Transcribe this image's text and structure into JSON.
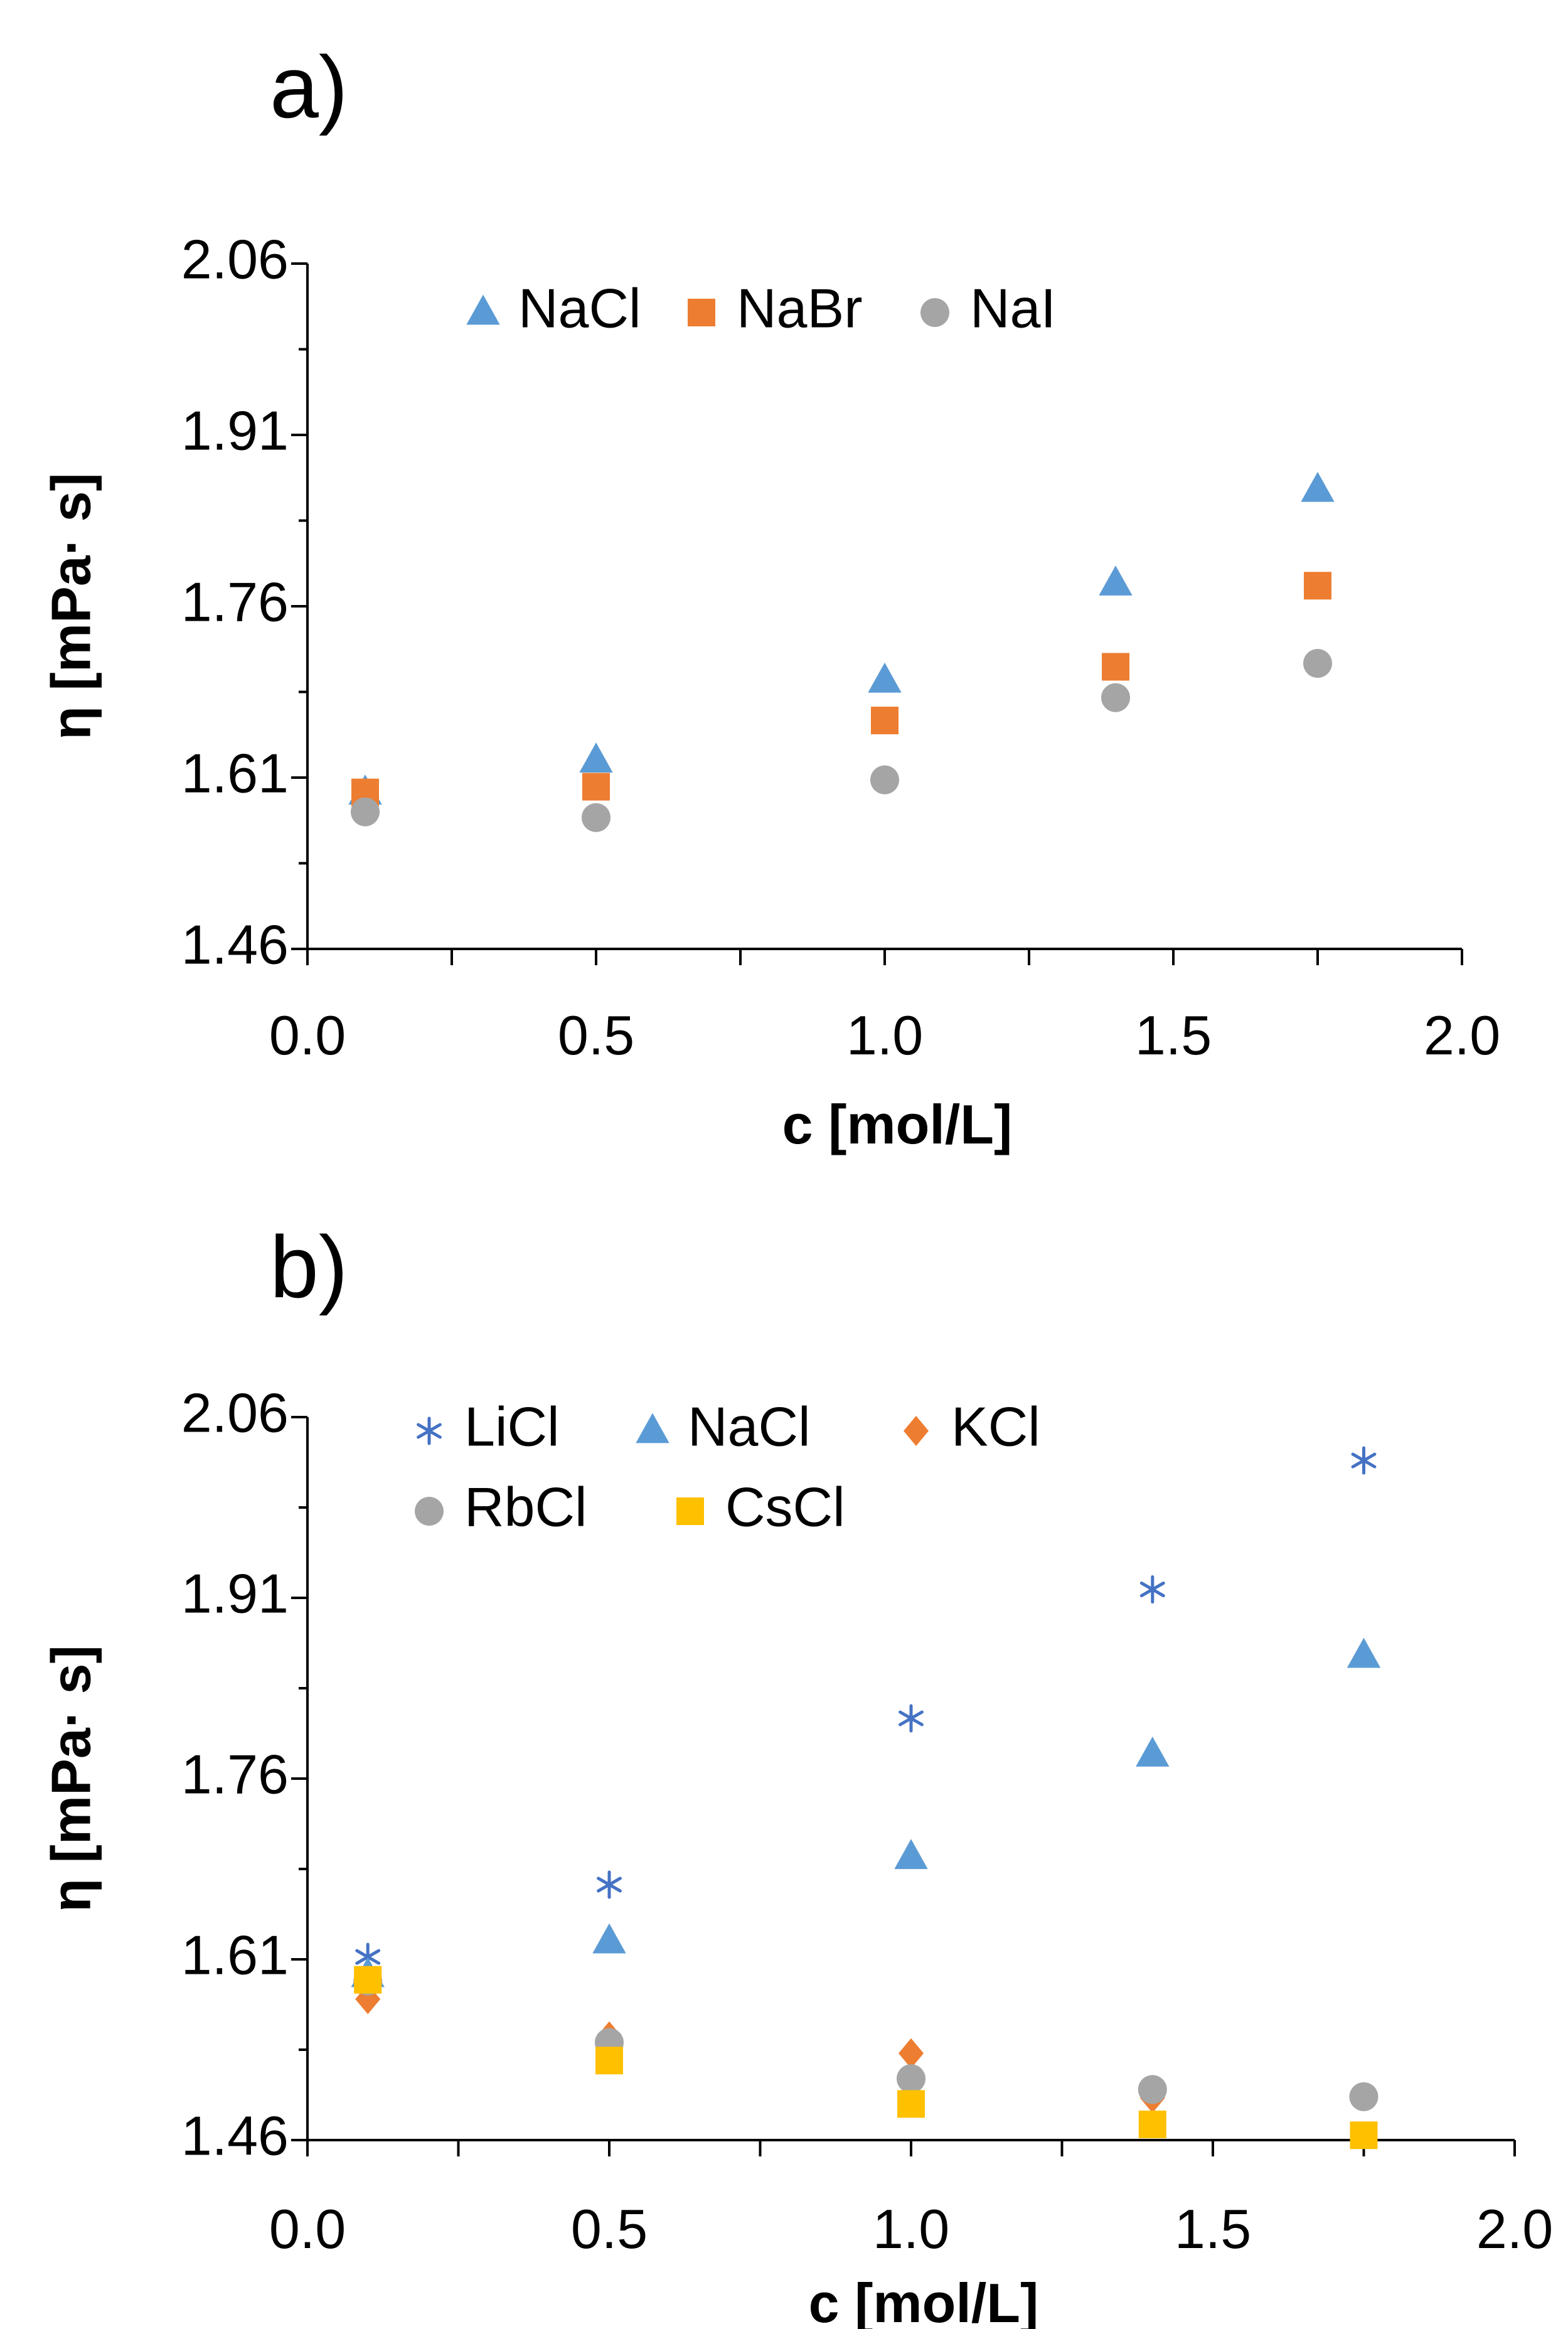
{
  "figure": {
    "panels": [
      "a)",
      "b)"
    ]
  },
  "chart_data": [
    {
      "type": "scatter",
      "panel_label": "a)",
      "title": "",
      "xlabel": "c [mol/L]",
      "ylabel": "η [mPa· s]",
      "xlim": [
        0.0,
        2.0
      ],
      "ylim": [
        1.46,
        2.06
      ],
      "xticks": [
        "0.0",
        "0.5",
        "1.0",
        "1.5",
        "2.0"
      ],
      "yticks": [
        "1.46",
        "1.61",
        "1.76",
        "1.91",
        "2.06"
      ],
      "grid": false,
      "legend_position": "top-left",
      "series": [
        {
          "name": "NaCl",
          "marker": "triangle",
          "color": "#5B9BD5",
          "x": [
            0.1,
            0.5,
            1.0,
            1.4,
            1.75
          ],
          "y": [
            1.597,
            1.625,
            1.695,
            1.78,
            1.862
          ]
        },
        {
          "name": "NaBr",
          "marker": "square",
          "color": "#ED7D31",
          "x": [
            0.1,
            0.5,
            1.0,
            1.4,
            1.75
          ],
          "y": [
            1.597,
            1.602,
            1.66,
            1.707,
            1.778
          ]
        },
        {
          "name": "NaI",
          "marker": "circle",
          "color": "#A5A5A5",
          "x": [
            0.1,
            0.5,
            1.0,
            1.4,
            1.75
          ],
          "y": [
            1.58,
            1.575,
            1.608,
            1.68,
            1.71
          ]
        }
      ]
    },
    {
      "type": "scatter",
      "panel_label": "b)",
      "title": "",
      "xlabel": "c [mol/L]",
      "ylabel": "η [mPa· s]",
      "xlim": [
        0.0,
        2.0
      ],
      "ylim": [
        1.46,
        2.06
      ],
      "xticks": [
        "0.0",
        "0.5",
        "1.0",
        "1.5",
        "2.0"
      ],
      "yticks": [
        "1.46",
        "1.61",
        "1.76",
        "1.91",
        "2.06"
      ],
      "grid": false,
      "legend_position": "top-left",
      "series": [
        {
          "name": "LiCl",
          "marker": "asterisk",
          "color": "#4472C4",
          "x": [
            0.1,
            0.5,
            1.0,
            1.4,
            1.75
          ],
          "y": [
            1.612,
            1.672,
            1.81,
            1.917,
            2.024
          ]
        },
        {
          "name": "NaCl",
          "marker": "triangle",
          "color": "#5B9BD5",
          "x": [
            0.1,
            0.5,
            1.0,
            1.4,
            1.75
          ],
          "y": [
            1.597,
            1.625,
            1.695,
            1.78,
            1.862
          ]
        },
        {
          "name": "KCl",
          "marker": "diamond",
          "color": "#ED7D31",
          "x": [
            0.1,
            0.5,
            1.0,
            1.4
          ],
          "y": [
            1.577,
            1.546,
            1.532,
            1.495
          ]
        },
        {
          "name": "RbCl",
          "marker": "circle",
          "color": "#A5A5A5",
          "x": [
            0.1,
            0.5,
            1.0,
            1.4,
            1.75
          ],
          "y": [
            1.592,
            1.541,
            1.511,
            1.502,
            1.496
          ]
        },
        {
          "name": "CsCl",
          "marker": "square",
          "color": "#FFC000",
          "x": [
            0.1,
            0.5,
            1.0,
            1.4,
            1.75
          ],
          "y": [
            1.593,
            1.526,
            1.49,
            1.473,
            1.464
          ]
        }
      ]
    }
  ]
}
